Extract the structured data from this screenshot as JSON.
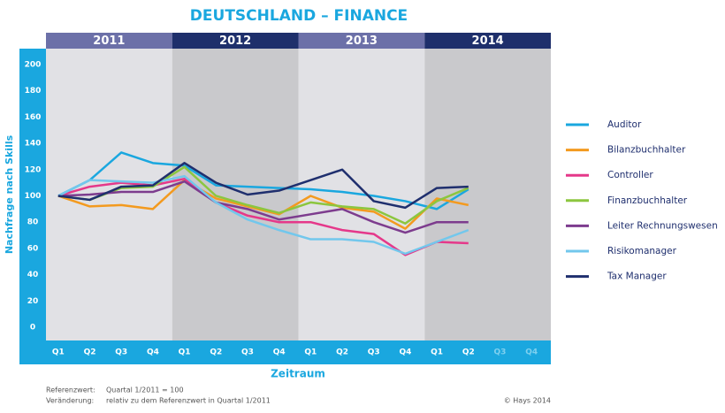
{
  "chart_data": {
    "type": "line",
    "title": "DEUTSCHLAND – FINANCE",
    "years": [
      "2011",
      "2012",
      "2013",
      "2014"
    ],
    "categories": [
      "Q1",
      "Q2",
      "Q3",
      "Q4",
      "Q1",
      "Q2",
      "Q3",
      "Q4",
      "Q1",
      "Q2",
      "Q3",
      "Q4",
      "Q1",
      "Q2",
      "Q3",
      "Q4"
    ],
    "x_label": "Zeitraum",
    "y_label": "Nachfrage nach Skills",
    "ylim": [
      -10,
      212
    ],
    "yticks": [
      0,
      20,
      40,
      60,
      80,
      100,
      120,
      140,
      160,
      180,
      200
    ],
    "grid": false,
    "legend": "right",
    "series": [
      {
        "name": "Auditor",
        "color": "#1aa7df",
        "values": [
          100,
          112,
          133,
          125,
          123,
          108,
          107,
          106,
          105,
          103,
          100,
          96,
          90,
          105,
          null,
          null
        ]
      },
      {
        "name": "Bilanzbuchhalter",
        "color": "#f39a1f",
        "values": [
          100,
          92,
          93,
          90,
          112,
          98,
          92,
          86,
          100,
          91,
          88,
          75,
          98,
          93,
          null,
          null
        ]
      },
      {
        "name": "Controller",
        "color": "#e5388a",
        "values": [
          100,
          107,
          110,
          108,
          113,
          95,
          85,
          80,
          80,
          74,
          71,
          55,
          65,
          64,
          null,
          null
        ]
      },
      {
        "name": "Finanzbuchhalter",
        "color": "#8cc63f",
        "values": [
          100,
          97,
          106,
          107,
          122,
          100,
          93,
          87,
          95,
          92,
          90,
          79,
          96,
          106,
          null,
          null
        ]
      },
      {
        "name": "Leiter Rechnungswesen",
        "color": "#7d3c8e",
        "values": [
          100,
          101,
          103,
          103,
          111,
          95,
          90,
          82,
          86,
          90,
          80,
          72,
          80,
          80,
          null,
          null
        ]
      },
      {
        "name": "Risikomanager",
        "color": "#72c7ec",
        "values": [
          100,
          112,
          111,
          110,
          115,
          95,
          82,
          74,
          67,
          67,
          65,
          56,
          65,
          74,
          null,
          null
        ]
      },
      {
        "name": "Tax Manager",
        "color": "#1f2f6e",
        "values": [
          100,
          97,
          107,
          108,
          125,
          110,
          101,
          104,
          112,
          120,
          96,
          91,
          106,
          107,
          null,
          null
        ]
      }
    ],
    "notes": [
      {
        "label": "Referenzwert:",
        "text": "Quartal 1/2011 = 100"
      },
      {
        "label": "Veränderung:",
        "text": "relativ zu dem Referenzwert in Quartal 1/2011"
      }
    ],
    "source": "© Hays 2014"
  }
}
